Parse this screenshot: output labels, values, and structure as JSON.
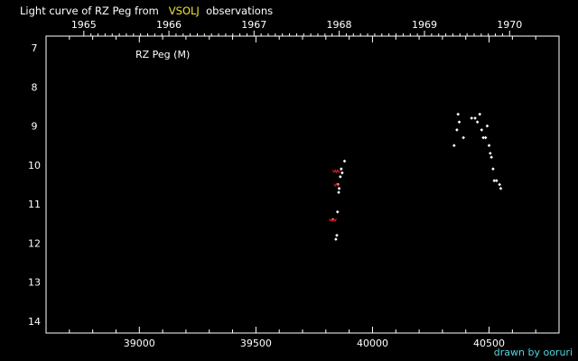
{
  "header": {
    "title_prefix": "Light curve of RZ Peg from",
    "title_source": "VSOLJ",
    "title_suffix": "observations"
  },
  "footer": {
    "credit": "drawn by ooruri"
  },
  "colors": {
    "background": "#000000",
    "axis": "#ffffff",
    "observation": "#ffffff",
    "note": "#d21e1e",
    "source_highlight": "#f2e63a",
    "credit": "#4fd6e0"
  },
  "chart_data": {
    "type": "scatter",
    "annotation": "RZ Peg (M)",
    "xlim": [
      38600,
      40800
    ],
    "ylim": [
      14.3,
      6.7
    ],
    "y_inverted": true,
    "grid": false,
    "x_ticks": [
      39000,
      39500,
      40000,
      40500
    ],
    "y_ticks": [
      7,
      8,
      9,
      10,
      11,
      12,
      13,
      14
    ],
    "top_axis": {
      "label_ticks": [
        "1965",
        "1966",
        "1967",
        "1968",
        "1969",
        "1970"
      ],
      "label_positions_jd": [
        38762,
        39127,
        39492,
        39857,
        40223,
        40588
      ]
    },
    "series": [
      {
        "points": [
          {
            "x": 39830,
            "y": 11.4
          },
          {
            "x": 39843,
            "y": 11.9
          },
          {
            "x": 39847,
            "y": 11.8
          },
          {
            "x": 39850,
            "y": 11.2
          },
          {
            "x": 39852,
            "y": 10.5
          },
          {
            "x": 39855,
            "y": 10.7
          },
          {
            "x": 39857,
            "y": 10.6
          },
          {
            "x": 39862,
            "y": 10.3
          },
          {
            "x": 39866,
            "y": 10.1
          },
          {
            "x": 39870,
            "y": 10.2
          },
          {
            "x": 39880,
            "y": 9.9
          },
          {
            "x": 40350,
            "y": 9.5
          },
          {
            "x": 40362,
            "y": 9.1
          },
          {
            "x": 40367,
            "y": 8.7
          },
          {
            "x": 40372,
            "y": 8.9
          },
          {
            "x": 40390,
            "y": 9.3
          },
          {
            "x": 40425,
            "y": 8.8
          },
          {
            "x": 40440,
            "y": 8.8
          },
          {
            "x": 40450,
            "y": 8.9
          },
          {
            "x": 40460,
            "y": 8.7
          },
          {
            "x": 40468,
            "y": 9.1
          },
          {
            "x": 40475,
            "y": 9.3
          },
          {
            "x": 40485,
            "y": 9.3
          },
          {
            "x": 40492,
            "y": 9.0
          },
          {
            "x": 40500,
            "y": 9.5
          },
          {
            "x": 40505,
            "y": 9.7
          },
          {
            "x": 40510,
            "y": 9.8
          },
          {
            "x": 40517,
            "y": 10.1
          },
          {
            "x": 40522,
            "y": 10.4
          },
          {
            "x": 40532,
            "y": 10.4
          },
          {
            "x": 40545,
            "y": 10.5
          },
          {
            "x": 40550,
            "y": 10.6
          }
        ]
      },
      {
        "points": [
          {
            "x": 39826,
            "y": 11.4
          },
          {
            "x": 39834,
            "y": 11.4
          },
          {
            "x": 39840,
            "y": 10.15
          },
          {
            "x": 39850,
            "y": 10.15
          },
          {
            "x": 39846,
            "y": 10.5
          }
        ]
      }
    ]
  }
}
